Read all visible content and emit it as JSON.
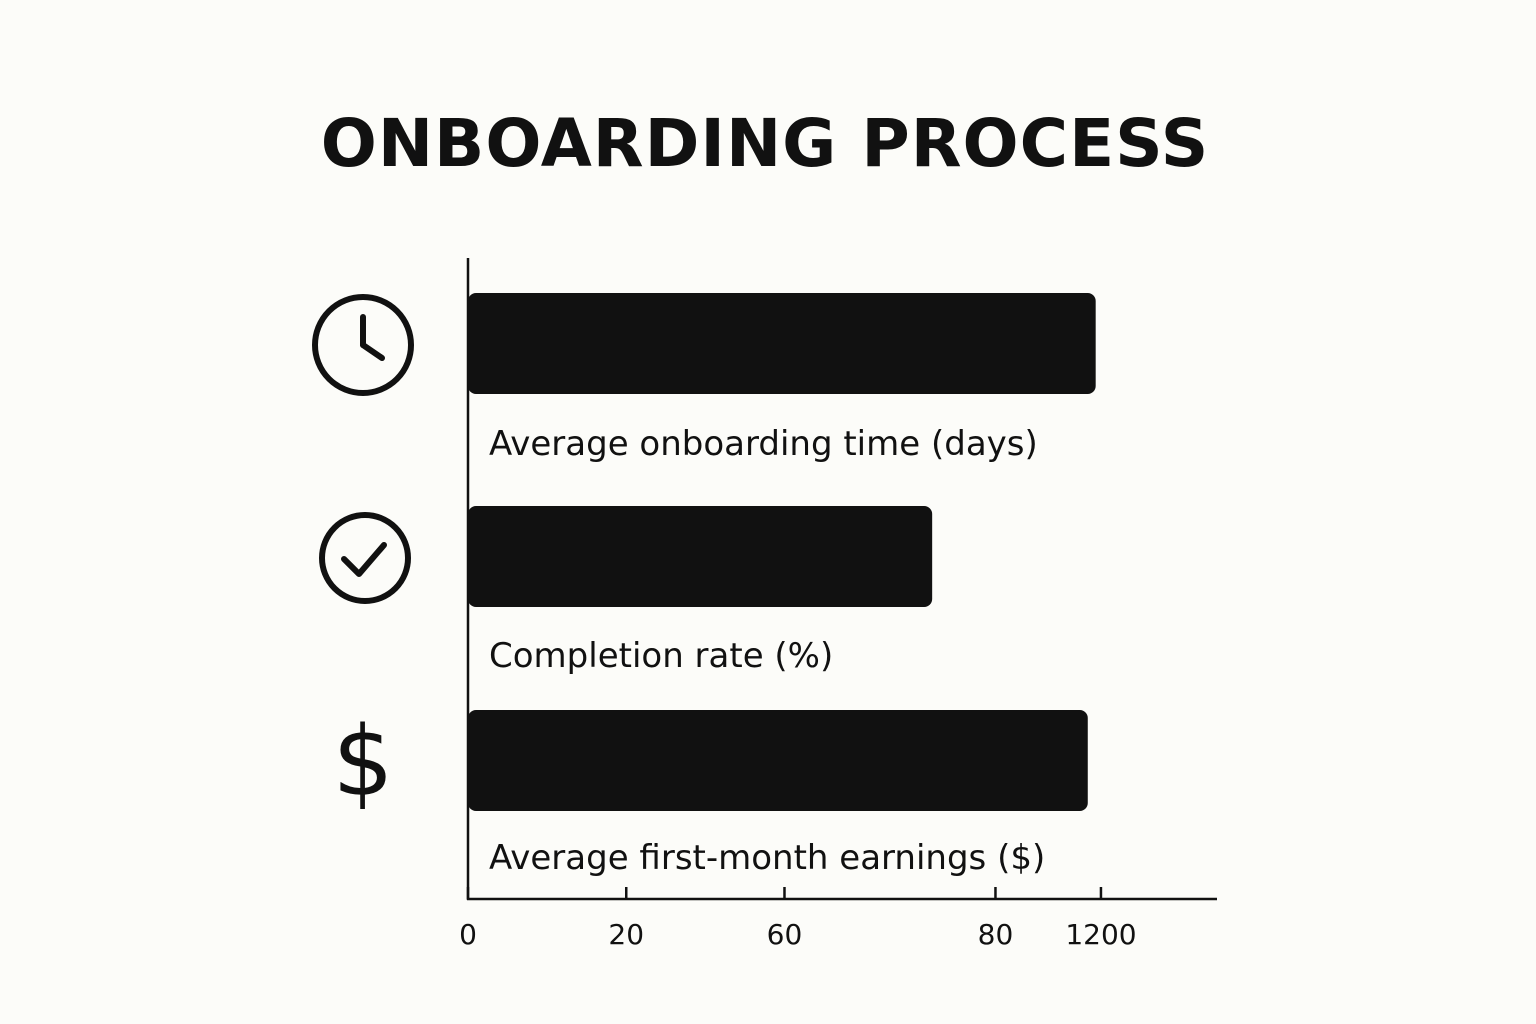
{
  "chart_data": {
    "type": "bar",
    "orientation": "horizontal",
    "title": "ONBOARDING PROCESS",
    "categories": [
      "Average onboarding time (days)",
      "Completion rate (%)",
      "Average first-month earnings ($)"
    ],
    "icons": [
      "clock-icon",
      "check-circle-icon",
      "dollar-icon"
    ],
    "values": [
      1190,
      880,
      1175
    ],
    "x_ticks": [
      {
        "label": "0",
        "value": 0
      },
      {
        "label": "20",
        "value": 300
      },
      {
        "label": "60",
        "value": 600
      },
      {
        "label": "80",
        "value": 1000
      },
      {
        "label": "1200",
        "value": 1200
      }
    ],
    "xlim": [
      0,
      1420
    ],
    "grid": false,
    "bar_color": "#111111"
  }
}
